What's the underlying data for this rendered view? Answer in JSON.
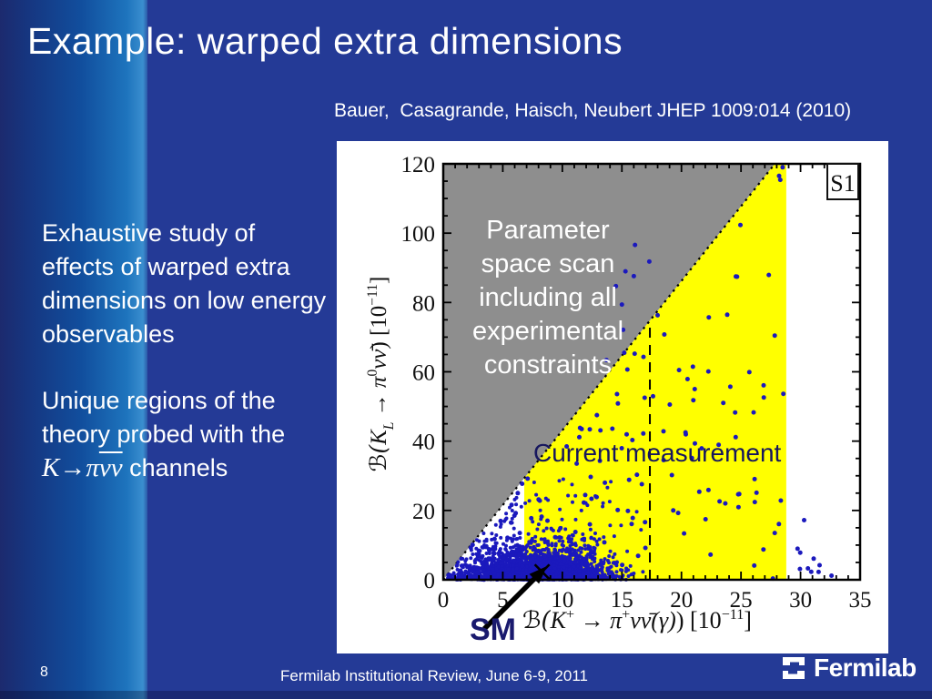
{
  "slide": {
    "title": "Example: warped extra dimensions",
    "citation": "Bauer,  Casagrande, Haisch, Neubert JHEP 1009:014 (2010)",
    "body": {
      "para1": "Exhaustive study of effects of warped extra dimensions on low energy observables",
      "para2_prefix": "Unique regions of the theory probed with the ",
      "para2_k": "K",
      "para2_arrow": "→",
      "para2_pi": "π",
      "para2_nunu": "νν",
      "para2_suffix": " channels"
    },
    "footer": {
      "page_number": "8",
      "text": "Fermilab Institutional Review, June 6-9, 2011",
      "logo_text": "Fermilab"
    }
  },
  "chart_data": {
    "type": "scatter",
    "xlabel": "B(K+ -> pi+ nu nubar (gamma))  [10^-11]",
    "ylabel": "B(KL -> pi0 nu nubar)  [10^-11]",
    "xlim": [
      0,
      35
    ],
    "ylim": [
      0,
      120
    ],
    "x_major_ticks": [
      0,
      5,
      10,
      15,
      20,
      25,
      30,
      35
    ],
    "y_major_ticks": [
      0,
      20,
      40,
      60,
      80,
      100,
      120
    ],
    "x_minor_step": 1,
    "y_minor_step": 5,
    "legend_label": "S1",
    "annotations": {
      "excluded_region": "Parameter space scan including all experimental constraints",
      "measurement": "Current measurement",
      "sm": "SM"
    },
    "gn_bound": {
      "slope": 4.31
    },
    "yellow_band": {
      "x_min": 6.8,
      "x_max": 28.8
    },
    "dashed_line_x": 17.35,
    "sm_point": [
      8.3,
      2.3
    ],
    "colors": {
      "excluded": "#8e8e8e",
      "band": "#ffff00",
      "points": "#1b19bd",
      "frame": "#000000",
      "measurement_text": "#16165e",
      "sm_text": "#1a1a6e"
    },
    "point_clusters": [
      {
        "count": 2600,
        "x_mean": 7.8,
        "x_sd": 2.7,
        "y_scale": 2.6,
        "x_min": 0.4,
        "x_max": 16,
        "y_max": 30,
        "r": 2.0
      },
      {
        "count": 320,
        "x_mean": 8.5,
        "x_sd": 3.6,
        "y_scale": 7.0,
        "x_min": 0.5,
        "x_max": 18,
        "y_max": 38,
        "r": 2.0
      },
      {
        "count": 120,
        "uniform": true,
        "x_min": 1.0,
        "x_max": 29,
        "y_frac_max": 0.97,
        "r": 2.5
      },
      {
        "count": 60,
        "uniform": true,
        "x_min": 0.4,
        "x_max": 6.6,
        "y_frac_max": 0.95,
        "r": 2.0
      },
      {
        "count": 6,
        "x_mean": 30.6,
        "x_sd": 1.1,
        "y_scale": 6.0,
        "x_min": 29,
        "x_max": 32.6,
        "y_max": 18,
        "r": 2.5
      }
    ],
    "notable_points": [
      [
        28.5,
        119
      ],
      [
        28.2,
        116.5
      ],
      [
        16.1,
        96.6
      ],
      [
        17.3,
        91.8
      ],
      [
        15.3,
        89
      ],
      [
        16.0,
        87.6
      ],
      [
        14.5,
        84.7
      ],
      [
        15.0,
        79.4
      ],
      [
        18.0,
        76.3
      ],
      [
        22.3,
        75.7
      ],
      [
        15.1,
        72.1
      ],
      [
        15.2,
        65.5
      ],
      [
        25.7,
        59.9
      ],
      [
        26.9,
        56.1
      ],
      [
        24.1,
        55.7
      ],
      [
        19.8,
        60.5
      ],
      [
        21.0,
        51.8
      ],
      [
        13.7,
        63.4
      ],
      [
        12.9,
        47.5
      ],
      [
        14.2,
        43.6
      ],
      [
        16.8,
        42.2
      ],
      [
        30.3,
        17.2
      ],
      [
        31.1,
        6.1
      ],
      [
        31.6,
        4.2
      ],
      [
        30.9,
        2.3
      ],
      [
        21.5,
        25.4
      ],
      [
        26.3,
        25.1
      ],
      [
        23.2,
        22.6
      ],
      [
        19.2,
        30.2
      ],
      [
        11.2,
        33.5
      ]
    ],
    "ylabel_parts": {
      "p1": "ℬ(",
      "p2": "K",
      "p3": "L",
      "p4": " → ",
      "p5": "π",
      "p6": "0",
      "p7": "νν̄",
      "p8": ")",
      "p9": "  [10",
      "p10": "−11",
      "p11": "]"
    },
    "xlabel_parts": {
      "p1": "ℬ(",
      "p2": "K",
      "p3": "+",
      "p4": " → ",
      "p5": "π",
      "p6": "+",
      "p7": "νν̄(γ)",
      "p8": ")",
      "p9": "  [10",
      "p10": "−11",
      "p11": "]"
    }
  }
}
